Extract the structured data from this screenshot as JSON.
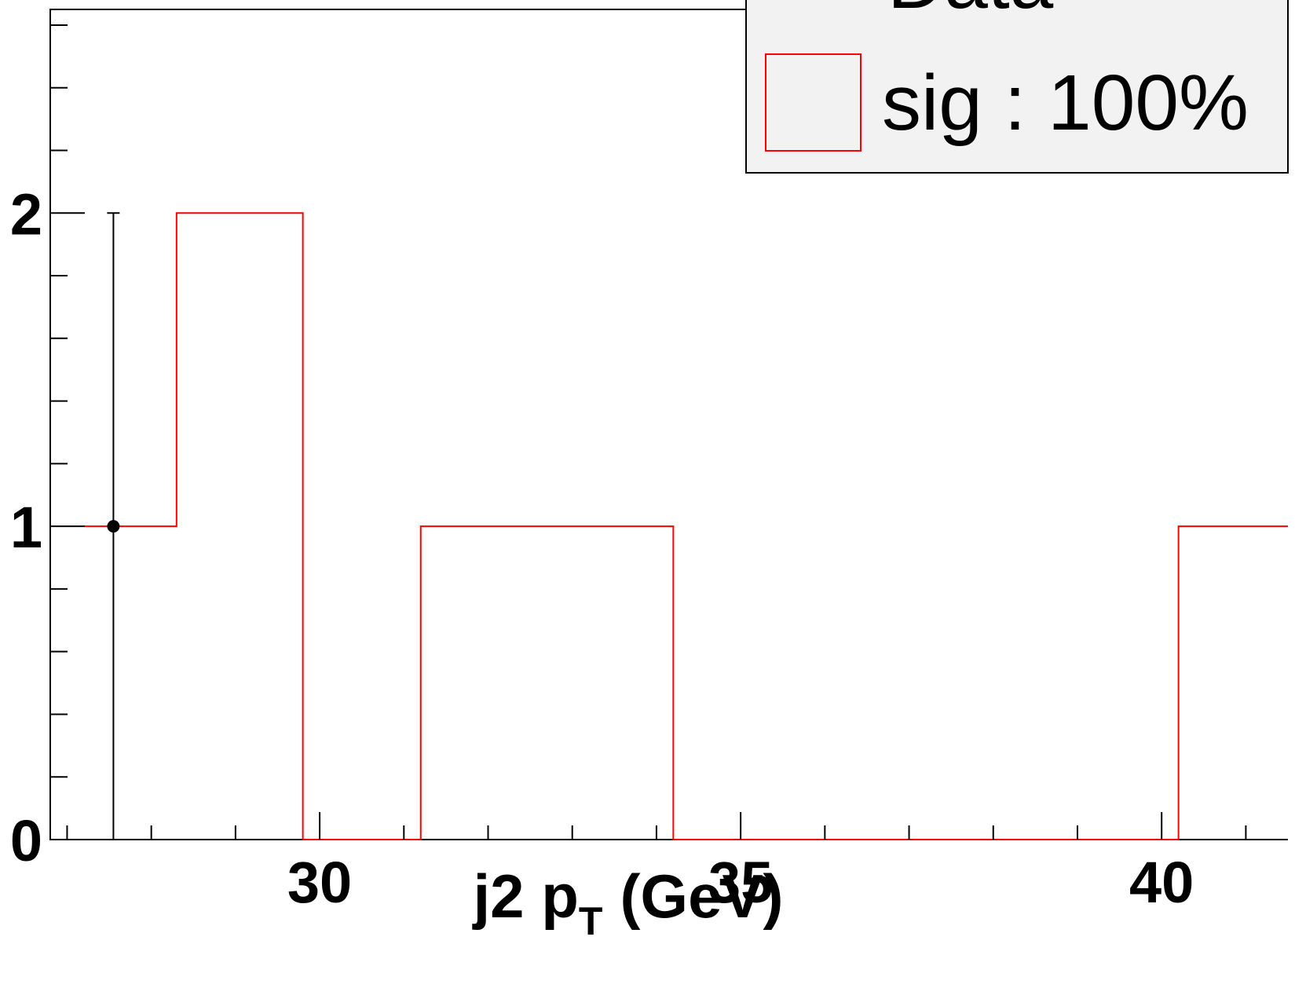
{
  "chart_data": {
    "type": "bar",
    "xlabel": "j2 p",
    "xlabel_subscript": "T",
    "xlabel_unit": "(GeV)",
    "xlim": [
      26.8,
      41.5
    ],
    "ylim": [
      0,
      2.65
    ],
    "x_ticks": [
      30,
      35,
      40
    ],
    "y_ticks": [
      0,
      1,
      2
    ],
    "x_tick_labels": [
      "30",
      "35",
      "40"
    ],
    "y_tick_labels": [
      "0",
      "1",
      "2"
    ],
    "series": [
      {
        "name": "sig : 100%",
        "kind": "histogram",
        "color": "#ff0000",
        "bin_edges": [
          27.2,
          28.3,
          29.8,
          31.2,
          32.7,
          34.2,
          35.7,
          37.2,
          38.7,
          40.2,
          41.5
        ],
        "values": [
          1,
          2,
          0,
          1,
          1,
          0,
          0,
          0,
          0,
          1
        ]
      },
      {
        "name": "Data",
        "kind": "points",
        "color": "#000000",
        "points": [
          {
            "x": 27.55,
            "y": 1,
            "err_low": 1,
            "err_high": 1
          }
        ]
      }
    ],
    "legend": {
      "placement": "top-right",
      "background": "#f2f2f2",
      "entries": [
        "Data",
        "sig : 100%"
      ]
    },
    "grid": false
  }
}
